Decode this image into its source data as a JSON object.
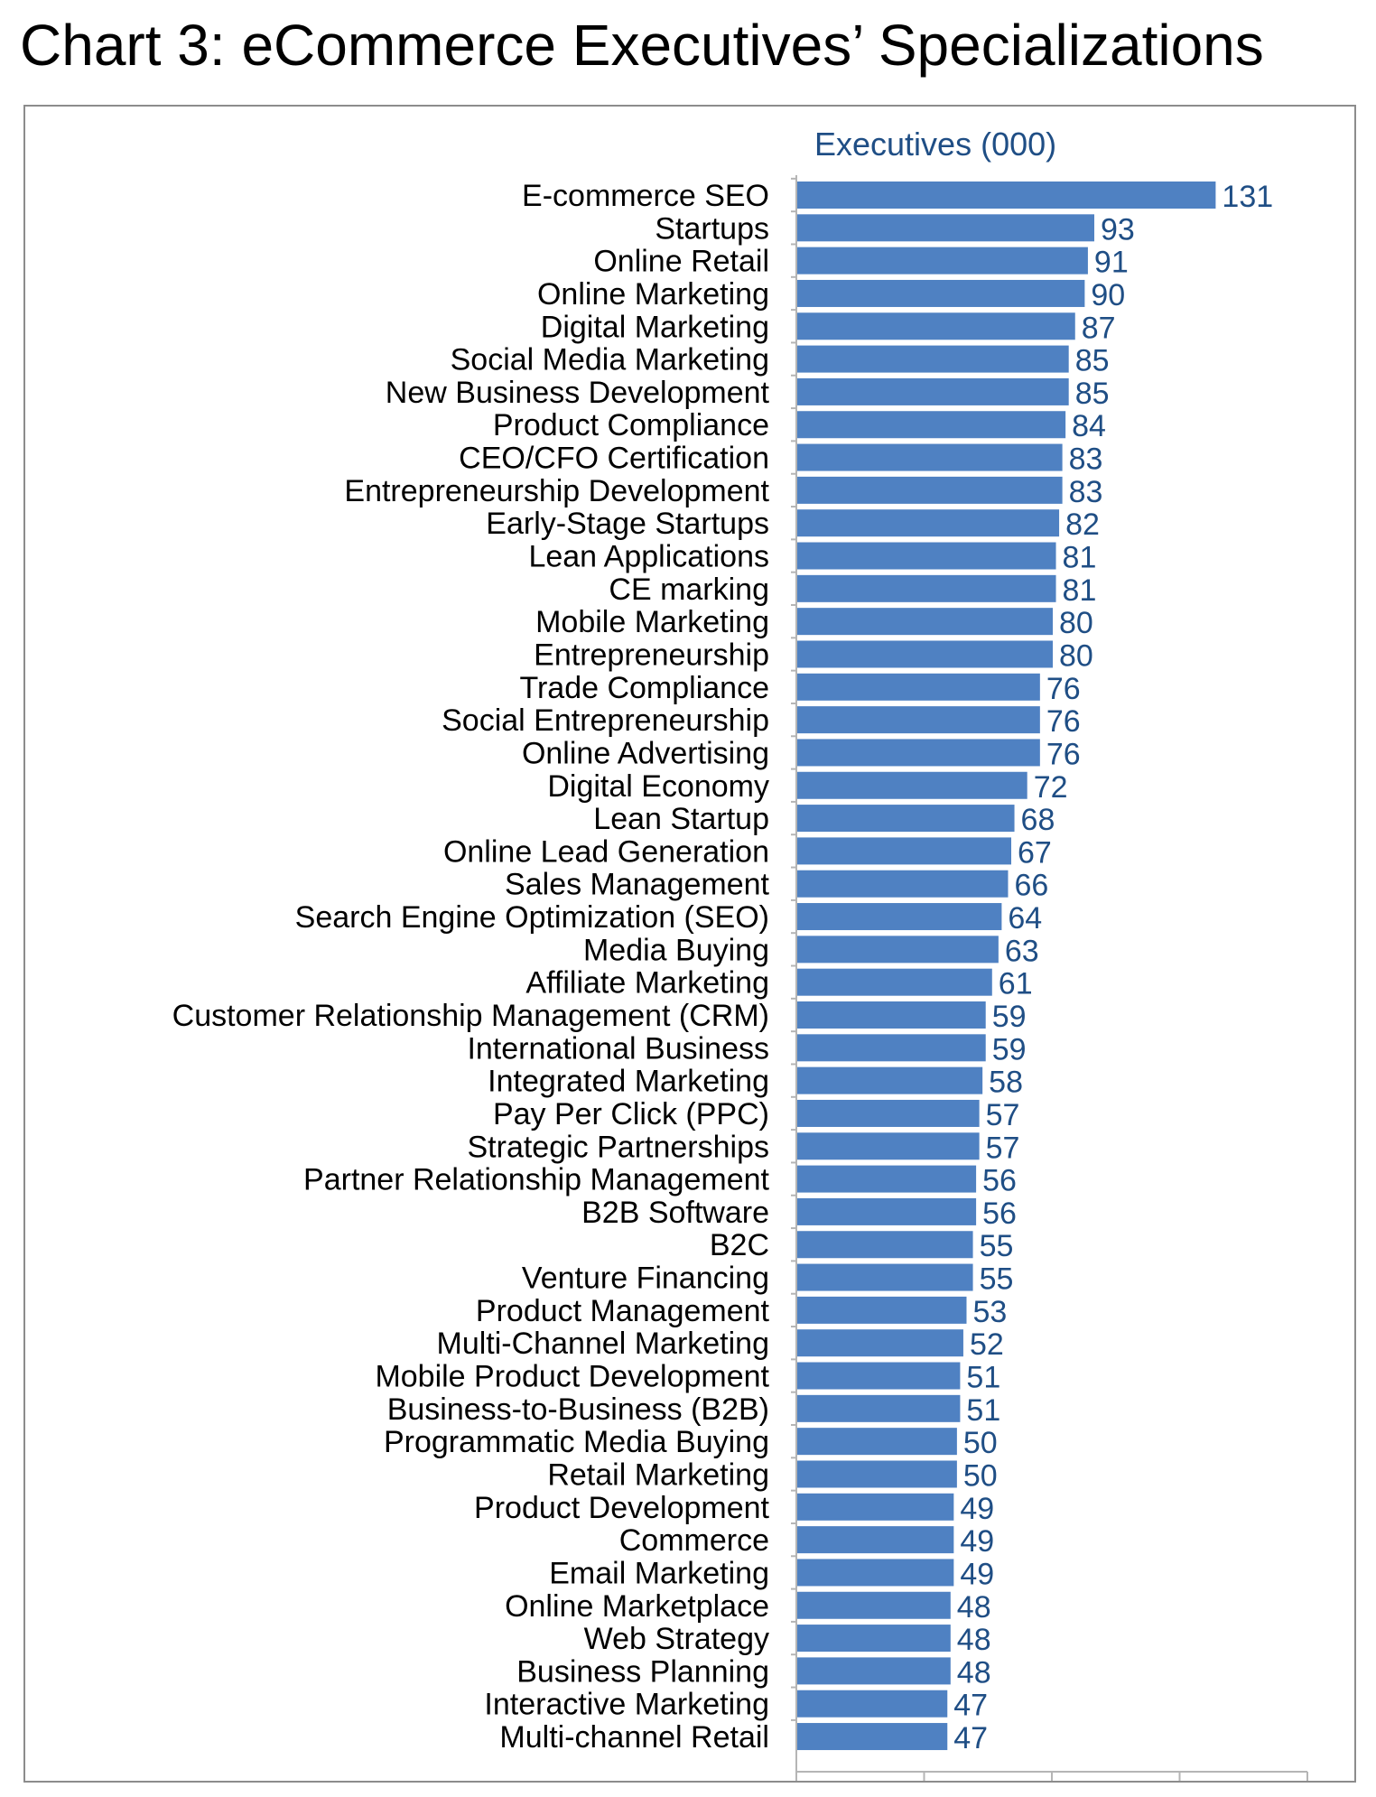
{
  "title": "Chart 3: eCommerce Executives’ Specializations",
  "chart_data": {
    "type": "bar",
    "orientation": "horizontal",
    "series_label": "Executives (000)",
    "bar_color": "#4f81c2",
    "label_color": "#1f4e85",
    "xlim": [
      0,
      160
    ],
    "categories": [
      "E-commerce SEO",
      "Startups",
      "Online Retail",
      "Online Marketing",
      "Digital Marketing",
      "Social Media Marketing",
      "New Business Development",
      "Product Compliance",
      "CEO/CFO Certification",
      "Entrepreneurship Development",
      "Early-Stage Startups",
      "Lean Applications",
      "CE marking",
      "Mobile Marketing",
      "Entrepreneurship",
      "Trade Compliance",
      "Social Entrepreneurship",
      "Online Advertising",
      "Digital Economy",
      "Lean Startup",
      "Online Lead Generation",
      "Sales Management",
      "Search Engine Optimization (SEO)",
      "Media Buying",
      "Affiliate Marketing",
      "Customer Relationship Management (CRM)",
      "International Business",
      "Integrated Marketing",
      "Pay Per Click (PPC)",
      "Strategic Partnerships",
      "Partner Relationship Management",
      "B2B Software",
      "B2C",
      "Venture Financing",
      "Product Management",
      "Multi-Channel Marketing",
      "Mobile Product Development",
      "Business-to-Business (B2B)",
      "Programmatic Media Buying",
      "Retail Marketing",
      "Product Development",
      "Commerce",
      "Email Marketing",
      "Online Marketplace",
      "Web Strategy",
      "Business Planning",
      "Interactive Marketing",
      "Multi-channel Retail"
    ],
    "values": [
      131,
      93,
      91,
      90,
      87,
      85,
      85,
      84,
      83,
      83,
      82,
      81,
      81,
      80,
      80,
      76,
      76,
      76,
      72,
      68,
      67,
      66,
      64,
      63,
      61,
      59,
      59,
      58,
      57,
      57,
      56,
      56,
      55,
      55,
      53,
      52,
      51,
      51,
      50,
      50,
      49,
      49,
      49,
      48,
      48,
      48,
      47,
      47
    ]
  }
}
